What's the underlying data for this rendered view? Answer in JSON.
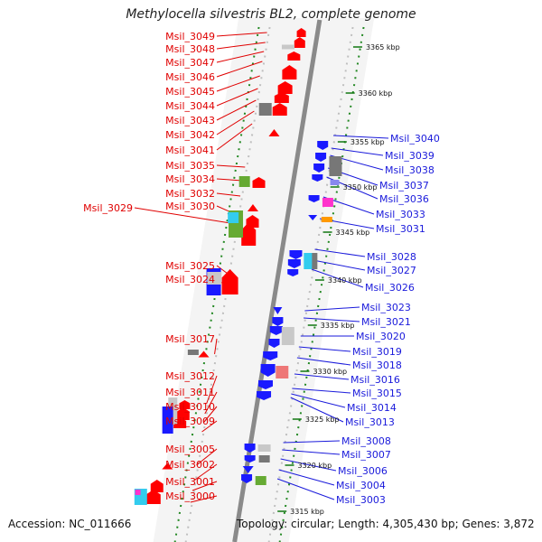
{
  "title": "Methylocella silvestris BL2, complete genome",
  "footer": {
    "accession": "Accession: NC_011666",
    "topology": "Topology: circular; Length: 4,305,430 bp; Genes: 3,872"
  },
  "ticks": [
    "3365 kbp",
    "3360 kbp",
    "3355 kbp",
    "3350 kbp",
    "3345 kbp",
    "3340 kbp",
    "3335 kbp",
    "3330 kbp",
    "3325 kbp",
    "3320 kbp",
    "3315 kbp"
  ],
  "left_labels": [
    "Msil_3049",
    "Msil_3048",
    "Msil_3047",
    "Msil_3046",
    "Msil_3045",
    "Msil_3044",
    "Msil_3043",
    "Msil_3042",
    "Msil_3041",
    "Msil_3035",
    "Msil_3034",
    "Msil_3032",
    "Msil_3030",
    "Msil_3029",
    "Msil_3025",
    "Msil_3024",
    "Msil_3017",
    "Msil_3012",
    "Msil_3011",
    "Msil_3010",
    "Msil_3009",
    "Msil_3005",
    "Msil_3002",
    "Msil_3001",
    "Msil_3000"
  ],
  "right_labels": [
    "Msil_3040",
    "Msil_3039",
    "Msil_3038",
    "Msil_3037",
    "Msil_3036",
    "Msil_3033",
    "Msil_3031",
    "Msil_3028",
    "Msil_3027",
    "Msil_3026",
    "Msil_3023",
    "Msil_3021",
    "Msil_3020",
    "Msil_3019",
    "Msil_3018",
    "Msil_3016",
    "Msil_3015",
    "Msil_3014",
    "Msil_3013",
    "Msil_3008",
    "Msil_3007",
    "Msil_3006",
    "Msil_3004",
    "Msil_3003"
  ],
  "colors": {
    "forward": "#ff0000",
    "reverse": "#1a1aff",
    "grey": "#777777",
    "lightgrey": "#c8c8c8",
    "green": "#66aa33",
    "cyan": "#33ccee",
    "magenta": "#ff33cc",
    "orange": "#ff9900",
    "pink": "#ee7777",
    "backbone": "#8a8a8a",
    "dots": "#228822"
  }
}
